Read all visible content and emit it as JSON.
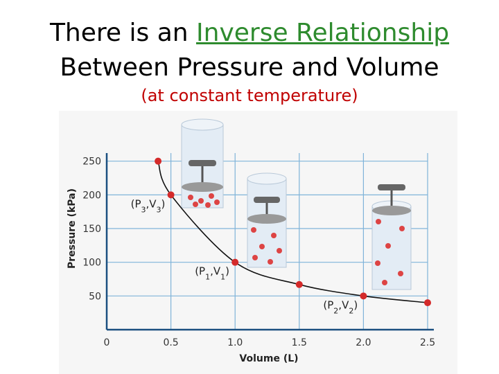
{
  "heading": {
    "line1_prefix": "There is an ",
    "line1_highlight": "Inverse Relationship",
    "line2": "Between Pressure and Volume",
    "subtitle": "(at constant temperature)"
  },
  "colors": {
    "title": "#000000",
    "highlight": "#2e8b2e",
    "subtitle": "#c00000",
    "points": "#d42a2a",
    "grid": "#7fb3d9",
    "curve": "#111111"
  },
  "chart_data": {
    "type": "line",
    "xlabel": "Volume (L)",
    "ylabel": "Pressure (kPa)",
    "xlim": [
      0,
      2.5
    ],
    "ylim": [
      0,
      262
    ],
    "xticks": [
      "0",
      "0.5",
      "1.0",
      "1.5",
      "2.0",
      "2.5"
    ],
    "xtick_values": [
      0,
      0.5,
      1.0,
      1.5,
      2.0,
      2.5
    ],
    "yticks": [
      "50",
      "100",
      "150",
      "200",
      "250"
    ],
    "ytick_values": [
      50,
      100,
      150,
      200,
      250
    ],
    "grid": true,
    "points": [
      {
        "x": 0.4,
        "y": 250
      },
      {
        "x": 0.5,
        "y": 200
      },
      {
        "x": 1.0,
        "y": 100
      },
      {
        "x": 1.5,
        "y": 67
      },
      {
        "x": 2.0,
        "y": 50
      },
      {
        "x": 2.5,
        "y": 40
      }
    ],
    "annotations": [
      {
        "text": "(P3,V3)",
        "x": 0.5,
        "y": 200
      },
      {
        "text": "(P1,V1)",
        "x": 1.0,
        "y": 100
      },
      {
        "text": "(P2,V2)",
        "x": 2.0,
        "y": 50
      }
    ]
  },
  "illustrations": [
    "cylinder-icon",
    "cylinder-icon",
    "cylinder-icon"
  ]
}
